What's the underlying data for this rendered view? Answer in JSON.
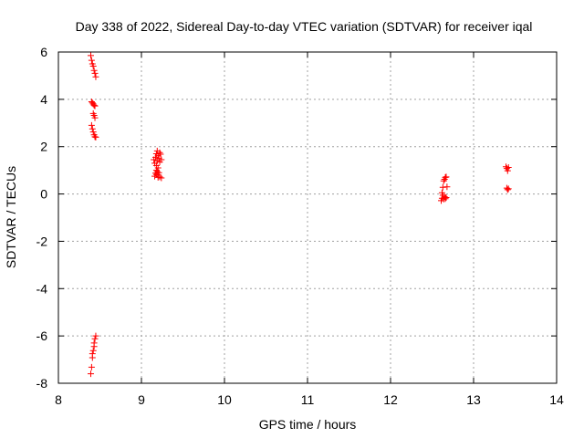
{
  "chart_data": {
    "type": "scatter",
    "title": "Day 338 of 2022, Sidereal Day-to-day VTEC variation (SDTVAR) for receiver iqal",
    "xlabel": "GPS time / hours",
    "ylabel": "SDTVAR / TECUs",
    "xlim": [
      8,
      14
    ],
    "ylim": [
      -8,
      6
    ],
    "xticks": [
      8,
      9,
      10,
      11,
      12,
      13,
      14
    ],
    "yticks": [
      -8,
      -6,
      -4,
      -2,
      0,
      2,
      4,
      6
    ],
    "grid": true,
    "marker": "+",
    "color": "#ff0000",
    "series": [
      {
        "name": "SDTVAR",
        "points": [
          [
            8.39,
            5.85
          ],
          [
            8.4,
            5.65
          ],
          [
            8.41,
            5.5
          ],
          [
            8.42,
            5.4
          ],
          [
            8.43,
            5.22
          ],
          [
            8.44,
            5.1
          ],
          [
            8.45,
            4.95
          ],
          [
            8.4,
            3.9
          ],
          [
            8.41,
            3.85
          ],
          [
            8.42,
            3.8
          ],
          [
            8.43,
            3.75
          ],
          [
            8.44,
            3.72
          ],
          [
            8.42,
            3.4
          ],
          [
            8.43,
            3.32
          ],
          [
            8.44,
            3.22
          ],
          [
            8.4,
            2.9
          ],
          [
            8.41,
            2.75
          ],
          [
            8.42,
            2.62
          ],
          [
            8.43,
            2.5
          ],
          [
            8.44,
            2.42
          ],
          [
            8.45,
            2.4
          ],
          [
            8.45,
            -6.0
          ],
          [
            8.44,
            -6.12
          ],
          [
            8.43,
            -6.3
          ],
          [
            8.43,
            -6.45
          ],
          [
            8.42,
            -6.62
          ],
          [
            8.41,
            -6.75
          ],
          [
            8.41,
            -6.92
          ],
          [
            8.4,
            -7.32
          ],
          [
            8.39,
            -7.6
          ],
          [
            9.15,
            1.45
          ],
          [
            9.16,
            1.3
          ],
          [
            9.17,
            1.55
          ],
          [
            9.18,
            1.7
          ],
          [
            9.18,
            1.2
          ],
          [
            9.19,
            1.4
          ],
          [
            9.2,
            1.62
          ],
          [
            9.2,
            1.1
          ],
          [
            9.21,
            1.5
          ],
          [
            9.22,
            1.35
          ],
          [
            9.23,
            1.68
          ],
          [
            9.19,
            1.82
          ],
          [
            9.22,
            1.75
          ],
          [
            9.24,
            1.45
          ],
          [
            9.16,
            0.75
          ],
          [
            9.17,
            0.88
          ],
          [
            9.18,
            0.82
          ],
          [
            9.19,
            0.95
          ],
          [
            9.2,
            0.8
          ],
          [
            9.21,
            0.9
          ],
          [
            9.22,
            0.72
          ],
          [
            9.24,
            0.68
          ],
          [
            9.18,
            1.0
          ],
          [
            9.2,
            0.7
          ],
          [
            12.61,
            -0.28
          ],
          [
            12.62,
            -0.18
          ],
          [
            12.63,
            -0.05
          ],
          [
            12.64,
            -0.22
          ],
          [
            12.65,
            -0.12
          ],
          [
            12.66,
            -0.2
          ],
          [
            12.67,
            -0.15
          ],
          [
            12.62,
            0.05
          ],
          [
            12.63,
            0.28
          ],
          [
            12.64,
            0.55
          ],
          [
            12.65,
            0.62
          ],
          [
            12.66,
            0.7
          ],
          [
            12.67,
            0.72
          ],
          [
            12.68,
            0.3
          ],
          [
            13.39,
            1.15
          ],
          [
            13.4,
            1.08
          ],
          [
            13.41,
            0.98
          ],
          [
            13.42,
            1.12
          ],
          [
            13.4,
            0.25
          ],
          [
            13.41,
            0.18
          ],
          [
            13.42,
            0.22
          ]
        ]
      }
    ]
  }
}
